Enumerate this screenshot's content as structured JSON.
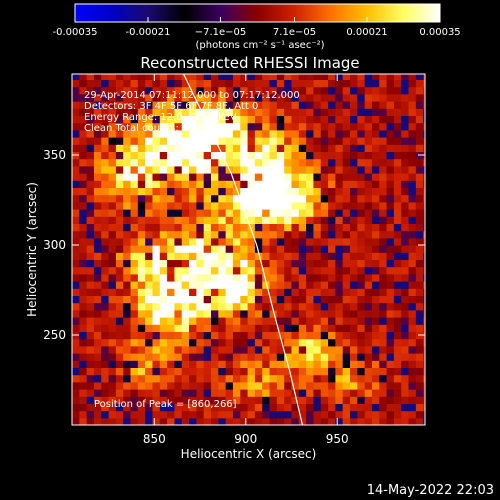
{
  "chart_data": {
    "type": "heatmap",
    "title": "Reconstructed RHESSI Image",
    "xlabel": "Heliocentric X (arcsec)",
    "ylabel": "Heliocentric Y (arcsec)",
    "xlim": [
      805,
      998
    ],
    "ylim": [
      200,
      395
    ],
    "x_ticks": [
      850,
      900,
      950
    ],
    "y_ticks": [
      250,
      300,
      350
    ],
    "x_tick_labels": [
      "850",
      "900",
      "950"
    ],
    "y_tick_labels": [
      "250",
      "300",
      "350"
    ],
    "colorbar": {
      "range": [
        -0.00035,
        0.00035
      ],
      "ticks": [
        -0.00035,
        -0.00021,
        -7.1e-05,
        7.1e-05,
        0.00021,
        0.00035
      ],
      "tick_labels": [
        "-0.00035",
        "-0.00021",
        "−7.1e−05",
        "7.1e−05",
        "0.00021",
        "0.00035"
      ],
      "units_label": "(photons cm⁻² s⁻¹ asec⁻²)",
      "colormap": [
        "#0000ff",
        "#0000c8",
        "#1a0a6e",
        "#000000",
        "#3a0060",
        "#8a0000",
        "#d02000",
        "#ff7000",
        "#ffc000",
        "#ffff60",
        "#ffffff"
      ]
    },
    "info_lines": [
      "29-Apr-2014 07:11:12.000 to 07:17:12.000",
      "Detectors: 3F 4F 5F 6F 7F 8F, Att 0",
      "Energy Range: 12.0 - 25.0 keV",
      "Clean    Total counts: 1.06E+04"
    ],
    "peak_label": "Position of Peak = [860,266]",
    "peak_position": [
      860,
      266
    ],
    "limb": [
      [
        866,
        395
      ],
      [
        892,
        340
      ],
      [
        906,
        300
      ],
      [
        916,
        260
      ],
      [
        924,
        230
      ],
      [
        931,
        200
      ]
    ],
    "grid": false,
    "legend": "none",
    "sources": [
      {
        "x": 868,
        "y": 355,
        "sx": 16,
        "sy": 14,
        "amp": 0.00035
      },
      {
        "x": 838,
        "y": 340,
        "sx": 12,
        "sy": 12,
        "amp": 0.00025
      },
      {
        "x": 883,
        "y": 364,
        "sx": 14,
        "sy": 10,
        "amp": 0.00026
      },
      {
        "x": 912,
        "y": 345,
        "sx": 12,
        "sy": 14,
        "amp": 0.0003
      },
      {
        "x": 920,
        "y": 328,
        "sx": 14,
        "sy": 10,
        "amp": 0.00027
      },
      {
        "x": 905,
        "y": 322,
        "sx": 18,
        "sy": 8,
        "amp": 0.00022
      },
      {
        "x": 878,
        "y": 290,
        "sx": 16,
        "sy": 14,
        "amp": 0.00033
      },
      {
        "x": 858,
        "y": 266,
        "sx": 12,
        "sy": 12,
        "amp": 0.00035
      },
      {
        "x": 845,
        "y": 292,
        "sx": 10,
        "sy": 8,
        "amp": 0.00022
      },
      {
        "x": 895,
        "y": 275,
        "sx": 12,
        "sy": 10,
        "amp": 0.00024
      },
      {
        "x": 935,
        "y": 240,
        "sx": 10,
        "sy": 10,
        "amp": 0.0002
      },
      {
        "x": 845,
        "y": 235,
        "sx": 10,
        "sy": 8,
        "amp": 0.00016
      },
      {
        "x": 905,
        "y": 225,
        "sx": 10,
        "sy": 8,
        "amp": 0.00015
      },
      {
        "x": 960,
        "y": 225,
        "sx": 10,
        "sy": 8,
        "amp": 0.00012
      }
    ]
  },
  "footer": {
    "datetime": "14-May-2022 22:03"
  }
}
